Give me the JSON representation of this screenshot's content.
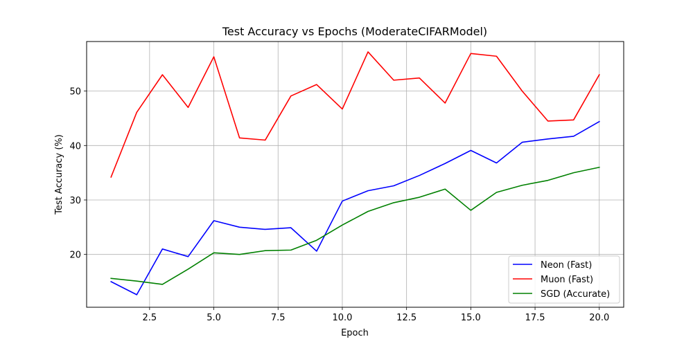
{
  "chart_data": {
    "type": "line",
    "title": "Test Accuracy vs Epochs (ModerateCIFARModel)",
    "xlabel": "Epoch",
    "ylabel": "Test Accuracy (%)",
    "xlim": [
      0.05,
      20.95
    ],
    "ylim": [
      10.3,
      59.1
    ],
    "xticks": [
      2.5,
      5.0,
      7.5,
      10.0,
      12.5,
      15.0,
      17.5,
      20.0
    ],
    "xtick_labels": [
      "2.5",
      "5.0",
      "7.5",
      "10.0",
      "12.5",
      "15.0",
      "17.5",
      "20.0"
    ],
    "yticks": [
      20,
      30,
      40,
      50
    ],
    "ytick_labels": [
      "20",
      "30",
      "40",
      "50"
    ],
    "grid": true,
    "legend_position": "lower-right",
    "x": [
      1,
      2,
      3,
      4,
      5,
      6,
      7,
      8,
      9,
      10,
      11,
      12,
      13,
      14,
      15,
      16,
      17,
      18,
      19,
      20
    ],
    "series": [
      {
        "name": "Neon (Fast)",
        "color": "#0000ff",
        "values": [
          15.0,
          12.6,
          21.0,
          19.6,
          26.2,
          25.0,
          24.6,
          24.9,
          20.6,
          29.8,
          31.7,
          32.6,
          34.5,
          36.7,
          39.1,
          36.8,
          40.6,
          41.2,
          41.7,
          44.4
        ]
      },
      {
        "name": "Muon (Fast)",
        "color": "#ff0000",
        "values": [
          34.2,
          46.1,
          53.0,
          47.0,
          56.3,
          41.4,
          41.0,
          49.1,
          51.2,
          46.7,
          57.2,
          52.0,
          52.4,
          47.8,
          56.9,
          56.4,
          50.0,
          44.5,
          44.7,
          53.0
        ]
      },
      {
        "name": "SGD (Accurate)",
        "color": "#008000",
        "values": [
          15.6,
          15.1,
          14.5,
          17.3,
          20.3,
          20.0,
          20.7,
          20.8,
          22.6,
          25.4,
          27.9,
          29.5,
          30.5,
          32.0,
          28.1,
          31.4,
          32.7,
          33.6,
          35.0,
          36.0
        ]
      }
    ]
  }
}
